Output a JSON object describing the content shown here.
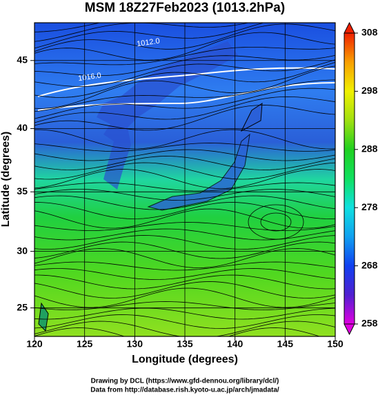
{
  "title": "MSM 18Z27Feb2023 (1013.2hPa)",
  "x_axis": {
    "label": "Longitude (degrees)",
    "lim": [
      120,
      150
    ],
    "ticks": [
      120,
      125,
      130,
      135,
      140,
      145,
      150
    ]
  },
  "y_axis": {
    "label": "Latitude  (degrees)",
    "lim": [
      22.4,
      47.6
    ],
    "ticks": [
      25,
      30,
      35,
      40,
      45
    ]
  },
  "colorbar": {
    "lim": [
      258,
      308
    ],
    "ticks": [
      258,
      268,
      278,
      288,
      298,
      308
    ]
  },
  "contour_labels": [
    "1012.0",
    "1016.0"
  ],
  "credits": [
    "Drawing by DCL (https://www.gfd-dennou.org/library/dcl/)",
    "Data from http://database.rish.kyoto-u.ac.jp/arch/jmadata/"
  ]
}
